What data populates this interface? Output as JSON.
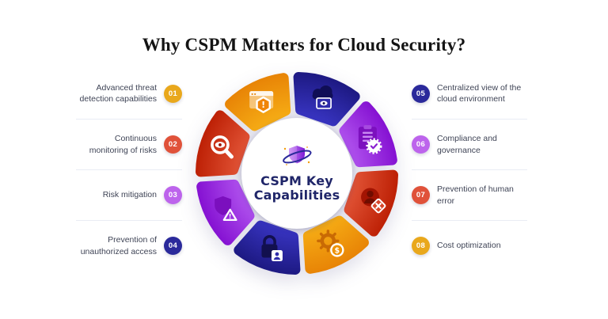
{
  "page": {
    "title": "Why CSPM Matters for Cloud Security?",
    "background": "#ffffff"
  },
  "center": {
    "line1": "CSPM Key",
    "line2": "Capabilities",
    "logo_icon": "shield-orbit-icon",
    "text_color": "#202669"
  },
  "left_items": [
    {
      "number": "01",
      "label": "Advanced threat\ndetection capabilities",
      "color": "#E9A81C",
      "icon": "browser-warning-icon"
    },
    {
      "number": "02",
      "label": "Continuous\nmonitoring of risks",
      "color": "#E0523A",
      "icon": "magnifier-eye-icon"
    },
    {
      "number": "03",
      "label": "Risk mitigation",
      "color": "#BD64EC",
      "icon": "shield-alert-icon"
    },
    {
      "number": "04",
      "label": "Prevention of\nunauthorized access",
      "color": "#2B2A9B",
      "icon": "lock-user-icon"
    }
  ],
  "right_items": [
    {
      "number": "05",
      "label": "Centralized view of the\ncloud environment",
      "color": "#2B2A9B",
      "icon": "cloud-eye-icon"
    },
    {
      "number": "06",
      "label": "Compliance and\ngovernance",
      "color": "#BD64EC",
      "icon": "clipboard-check-icon"
    },
    {
      "number": "07",
      "label": "Prevention of human error",
      "color": "#E0523A",
      "icon": "user-error-icon"
    },
    {
      "number": "08",
      "label": "Cost optimization",
      "color": "#E9A81C",
      "icon": "gear-dollar-icon"
    }
  ],
  "wheel": {
    "rotation_deg": -3.5,
    "palettes": {
      "yellow": {
        "light": "#F8B217",
        "dark": "#E88406"
      },
      "red": {
        "light": "#E65A3C",
        "dark": "#BD2005"
      },
      "purple": {
        "light": "#B55AF1",
        "dark": "#8511D2"
      },
      "blue": {
        "light": "#3C38CA",
        "dark": "#1D1982"
      }
    },
    "segments": [
      {
        "name": "advanced-threat-detection",
        "icon": "browser-warning-icon",
        "palette": "yellow",
        "start": 315,
        "end": 360
      },
      {
        "name": "centralized-view",
        "icon": "cloud-eye-icon",
        "palette": "blue",
        "start": 0,
        "end": 45
      },
      {
        "name": "compliance-governance",
        "icon": "clipboard-check-icon",
        "palette": "purple",
        "start": 45,
        "end": 90
      },
      {
        "name": "human-error-prevention",
        "icon": "user-error-icon",
        "palette": "red",
        "start": 90,
        "end": 135
      },
      {
        "name": "cost-optimization",
        "icon": "gear-dollar-icon",
        "palette": "yellow",
        "start": 135,
        "end": 180
      },
      {
        "name": "unauthorized-access-prevention",
        "icon": "lock-user-icon",
        "palette": "blue",
        "start": 180,
        "end": 225
      },
      {
        "name": "risk-mitigation",
        "icon": "shield-alert-icon",
        "palette": "purple",
        "start": 225,
        "end": 270
      },
      {
        "name": "continuous-monitoring",
        "icon": "magnifier-eye-icon",
        "palette": "red",
        "start": 270,
        "end": 315
      }
    ]
  }
}
